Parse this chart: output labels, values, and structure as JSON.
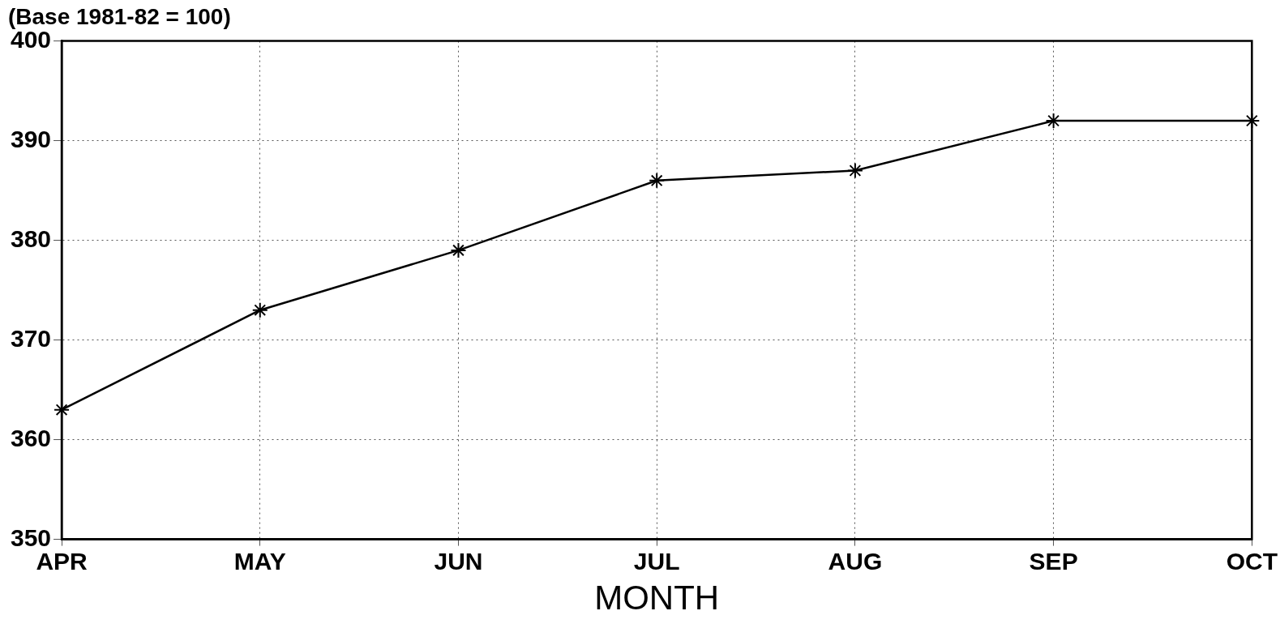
{
  "chart_data": {
    "type": "line",
    "title": "(Base 1981-82 = 100)",
    "xlabel": "MONTH",
    "categories": [
      "APR",
      "MAY",
      "JUN",
      "JUL",
      "AUG",
      "SEP",
      "OCT"
    ],
    "series": [
      {
        "color": "#000000",
        "values": [
          363,
          373,
          379,
          386,
          387,
          392,
          392
        ]
      }
    ],
    "ylim": [
      350,
      400
    ],
    "yticks": [
      350,
      360,
      370,
      380,
      390,
      400
    ],
    "grid": true,
    "marker": "cross",
    "line_style": "solid"
  }
}
